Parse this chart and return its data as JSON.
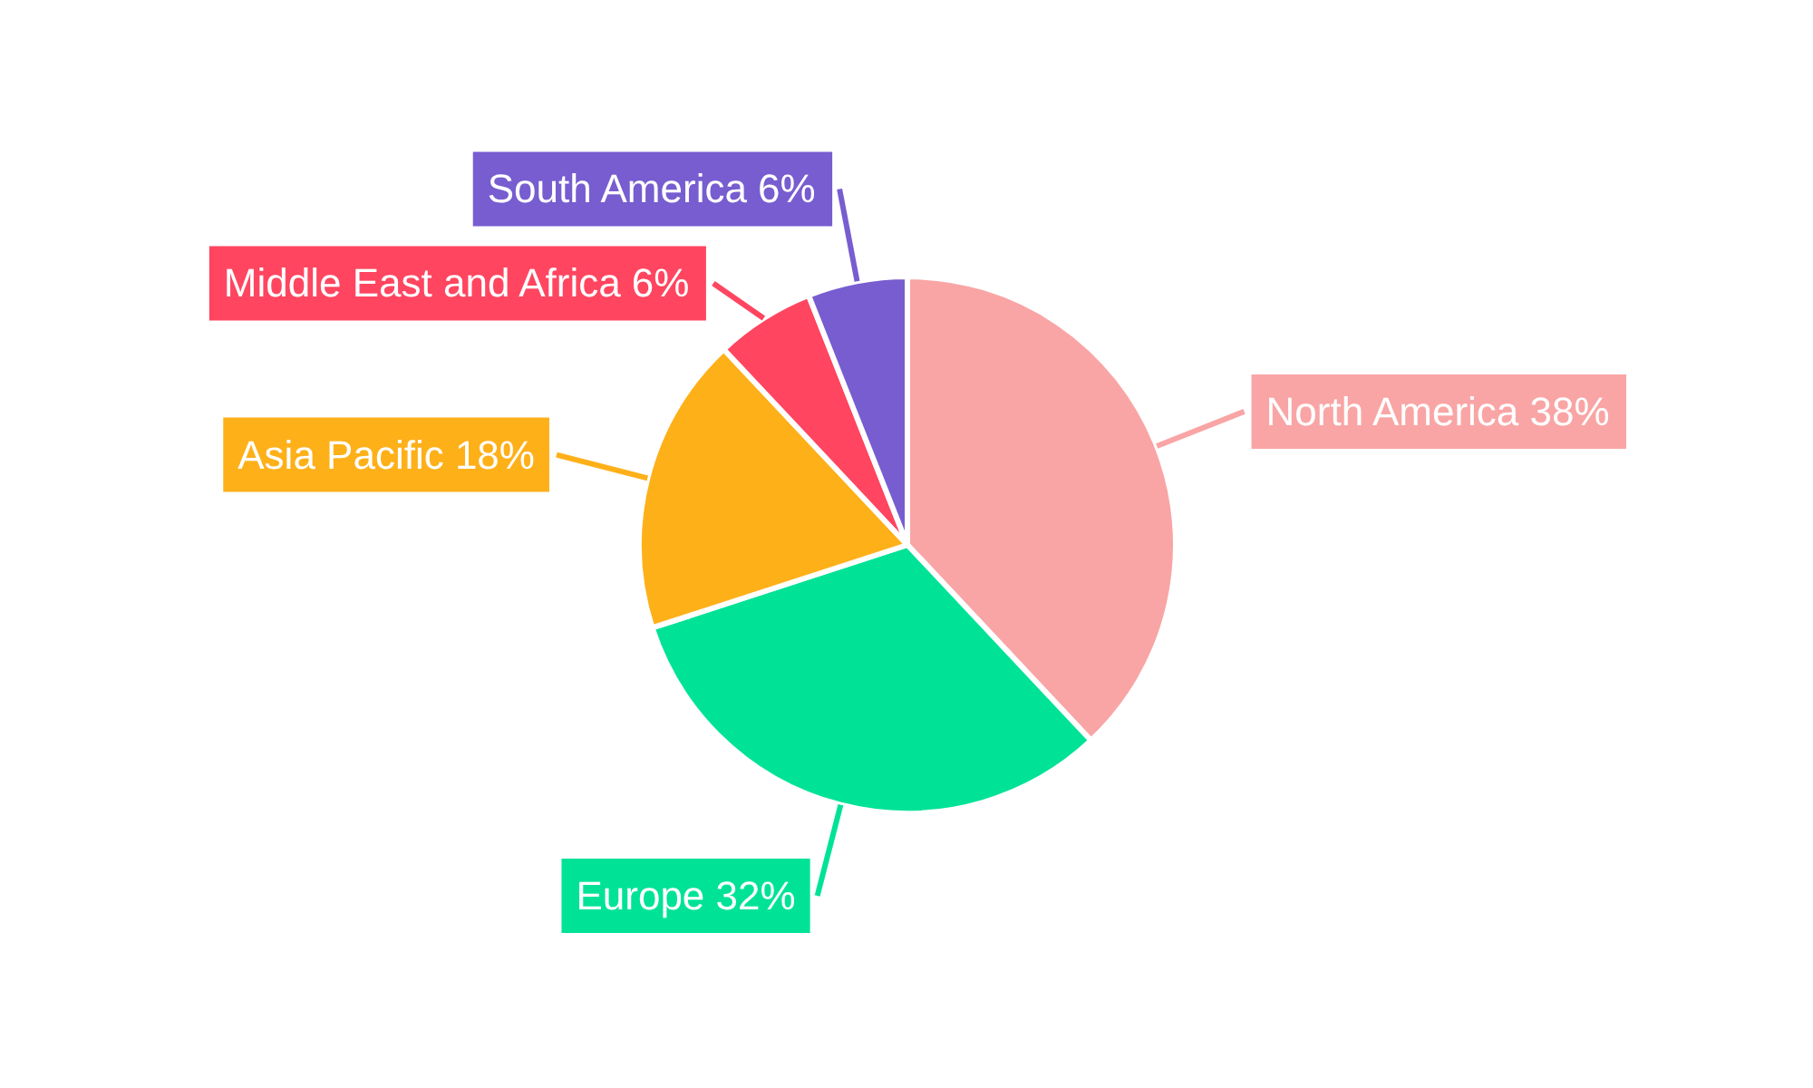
{
  "chart_data": {
    "type": "pie",
    "categories": [
      "North America",
      "Europe",
      "Asia Pacific",
      "Middle East and Africa",
      "South America"
    ],
    "values": [
      38,
      32,
      18,
      6,
      6
    ],
    "value_labels": [
      "38%",
      "32%",
      "18%",
      "6%",
      "6%"
    ],
    "colors": [
      "#f9a5a5",
      "#00e396",
      "#feb019",
      "#ff4560",
      "#775dd0"
    ],
    "legend": false
  }
}
